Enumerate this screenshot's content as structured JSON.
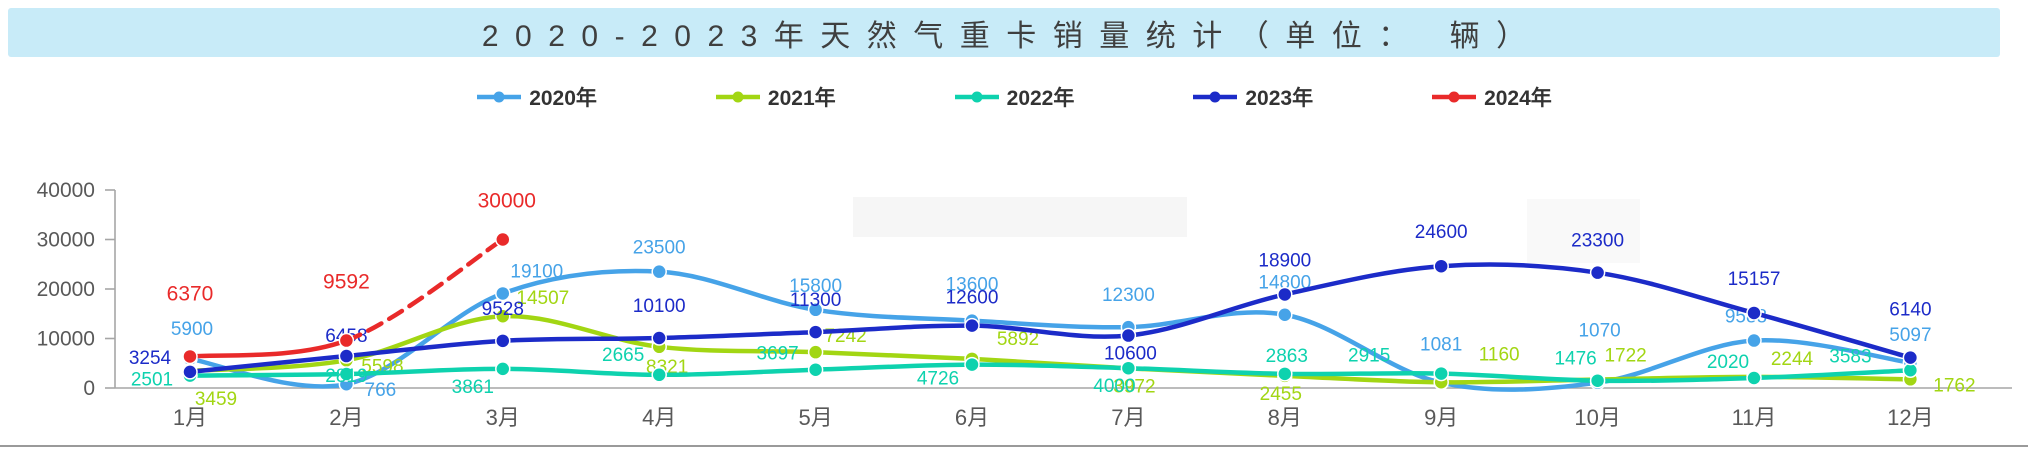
{
  "title": {
    "text": "2020-2023年天然气重卡销量统计（单位： 辆）"
  },
  "legend": [
    {
      "label": "2020年",
      "color": "#46a3e8"
    },
    {
      "label": "2021年",
      "color": "#a2d613"
    },
    {
      "label": "2022年",
      "color": "#0ed2ae"
    },
    {
      "label": "2023年",
      "color": "#1c2bc8"
    },
    {
      "label": "2024年",
      "color": "#e92a2a"
    }
  ],
  "chart_data": {
    "type": "line",
    "title": "2020-2023年天然气重卡销量统计（单位： 辆）",
    "categories": [
      "1月",
      "2月",
      "3月",
      "4月",
      "5月",
      "6月",
      "7月",
      "8月",
      "9月",
      "10月",
      "11月",
      "12月"
    ],
    "ylim": [
      0,
      40000
    ],
    "yticks": [
      0,
      10000,
      20000,
      30000,
      40000
    ],
    "grid": false,
    "legend_position": "top",
    "line_style": "smooth",
    "series": [
      {
        "name": "2020年",
        "color": "#46a3e8",
        "values": [
          5900,
          766,
          19100,
          23500,
          15800,
          13600,
          12300,
          14800,
          1081,
          1070,
          9588,
          5097
        ]
      },
      {
        "name": "2021年",
        "color": "#a2d613",
        "values": [
          3459,
          5598,
          14507,
          8321,
          7242,
          5892,
          3972,
          2455,
          1160,
          1722,
          2244,
          1762
        ]
      },
      {
        "name": "2022年",
        "color": "#0ed2ae",
        "values": [
          2501,
          2819,
          3861,
          2665,
          3697,
          4726,
          4000,
          2863,
          2915,
          1476,
          2020,
          3583
        ],
        "note": "July label mostly occluded behind 2023 label; July value estimated ~4000"
      },
      {
        "name": "2023年",
        "color": "#1c2bc8",
        "values": [
          3254,
          6458,
          9528,
          10100,
          11300,
          12600,
          10600,
          18900,
          24600,
          23300,
          15157,
          6140
        ]
      },
      {
        "name": "2024年",
        "color": "#e92a2a",
        "values": [
          6370,
          9592,
          30000
        ],
        "dashed_from_index": 1
      }
    ]
  }
}
